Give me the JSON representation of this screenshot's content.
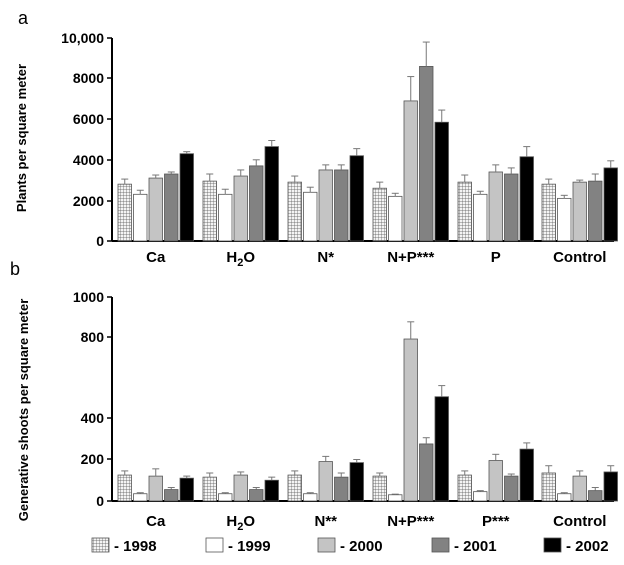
{
  "chart_data": [
    {
      "panel": "a",
      "type": "bar",
      "ylabel": "Plants per square meter",
      "yticks": [
        "0",
        "2000",
        "4000",
        "6000",
        "8000",
        "10,000"
      ],
      "ylim": [
        0,
        10000
      ],
      "categories": [
        "Ca",
        "H2O",
        "N*",
        "N+P***",
        "P",
        "Control"
      ],
      "category_labels": [
        {
          "text": "Ca"
        },
        {
          "text": "H",
          "sub": "2",
          "tail": "O"
        },
        {
          "text": "N*"
        },
        {
          "text": "N+P***"
        },
        {
          "text": "P"
        },
        {
          "text": "Control"
        }
      ],
      "series": [
        {
          "name": "- 1998",
          "values": [
            2800,
            2950,
            2900,
            2600,
            2900,
            2800
          ],
          "errors": [
            250,
            350,
            300,
            300,
            350,
            250
          ]
        },
        {
          "name": "- 1999",
          "values": [
            2300,
            2300,
            2400,
            2200,
            2300,
            2100
          ],
          "errors": [
            200,
            250,
            250,
            150,
            150,
            150
          ]
        },
        {
          "name": "- 2000",
          "values": [
            3100,
            3200,
            3500,
            6900,
            3400,
            2900
          ],
          "errors": [
            150,
            300,
            250,
            1200,
            350,
            100
          ]
        },
        {
          "name": "- 2001",
          "values": [
            3300,
            3700,
            3500,
            8600,
            3300,
            2950
          ],
          "errors": [
            100,
            300,
            250,
            1200,
            300,
            350
          ]
        },
        {
          "name": "- 2002",
          "values": [
            4300,
            4650,
            4200,
            5850,
            4150,
            3600
          ],
          "errors": [
            100,
            300,
            350,
            600,
            500,
            350
          ]
        }
      ]
    },
    {
      "panel": "b",
      "type": "bar",
      "ylabel": "Generative shoots per square meter",
      "yticks": [
        "0",
        "200",
        "400",
        "800",
        "1000"
      ],
      "ylim": [
        0,
        1000
      ],
      "categories": [
        "Ca",
        "H2O",
        "N**",
        "N+P***",
        "P***",
        "Control"
      ],
      "category_labels": [
        {
          "text": "Ca"
        },
        {
          "text": "H",
          "sub": "2",
          "tail": "O"
        },
        {
          "text": "N**"
        },
        {
          "text": "N+P***"
        },
        {
          "text": "P***"
        },
        {
          "text": "Control"
        }
      ],
      "series": [
        {
          "name": "- 1998",
          "values": [
            125,
            115,
            125,
            120,
            125,
            135
          ],
          "errors": [
            20,
            20,
            20,
            15,
            20,
            35
          ]
        },
        {
          "name": "- 1999",
          "values": [
            35,
            35,
            35,
            30,
            45,
            35
          ],
          "errors": [
            5,
            5,
            5,
            3,
            5,
            5
          ]
        },
        {
          "name": "- 2000",
          "values": [
            120,
            125,
            190,
            790,
            195,
            120
          ],
          "errors": [
            35,
            15,
            25,
            85,
            30,
            25
          ]
        },
        {
          "name": "- 2001",
          "values": [
            55,
            55,
            115,
            275,
            120,
            50
          ],
          "errors": [
            10,
            10,
            20,
            30,
            10,
            15
          ]
        },
        {
          "name": "- 2002",
          "values": [
            110,
            100,
            185,
            505,
            250,
            140
          ],
          "errors": [
            10,
            15,
            15,
            55,
            30,
            30
          ]
        }
      ]
    }
  ],
  "series_styles": [
    {
      "fill": "#f2f2f2",
      "pattern": "grid"
    },
    {
      "fill": "#ffffff",
      "pattern": "none"
    },
    {
      "fill": "#c4c4c4",
      "pattern": "none"
    },
    {
      "fill": "#828282",
      "pattern": "none"
    },
    {
      "fill": "#000000",
      "pattern": "none"
    }
  ]
}
